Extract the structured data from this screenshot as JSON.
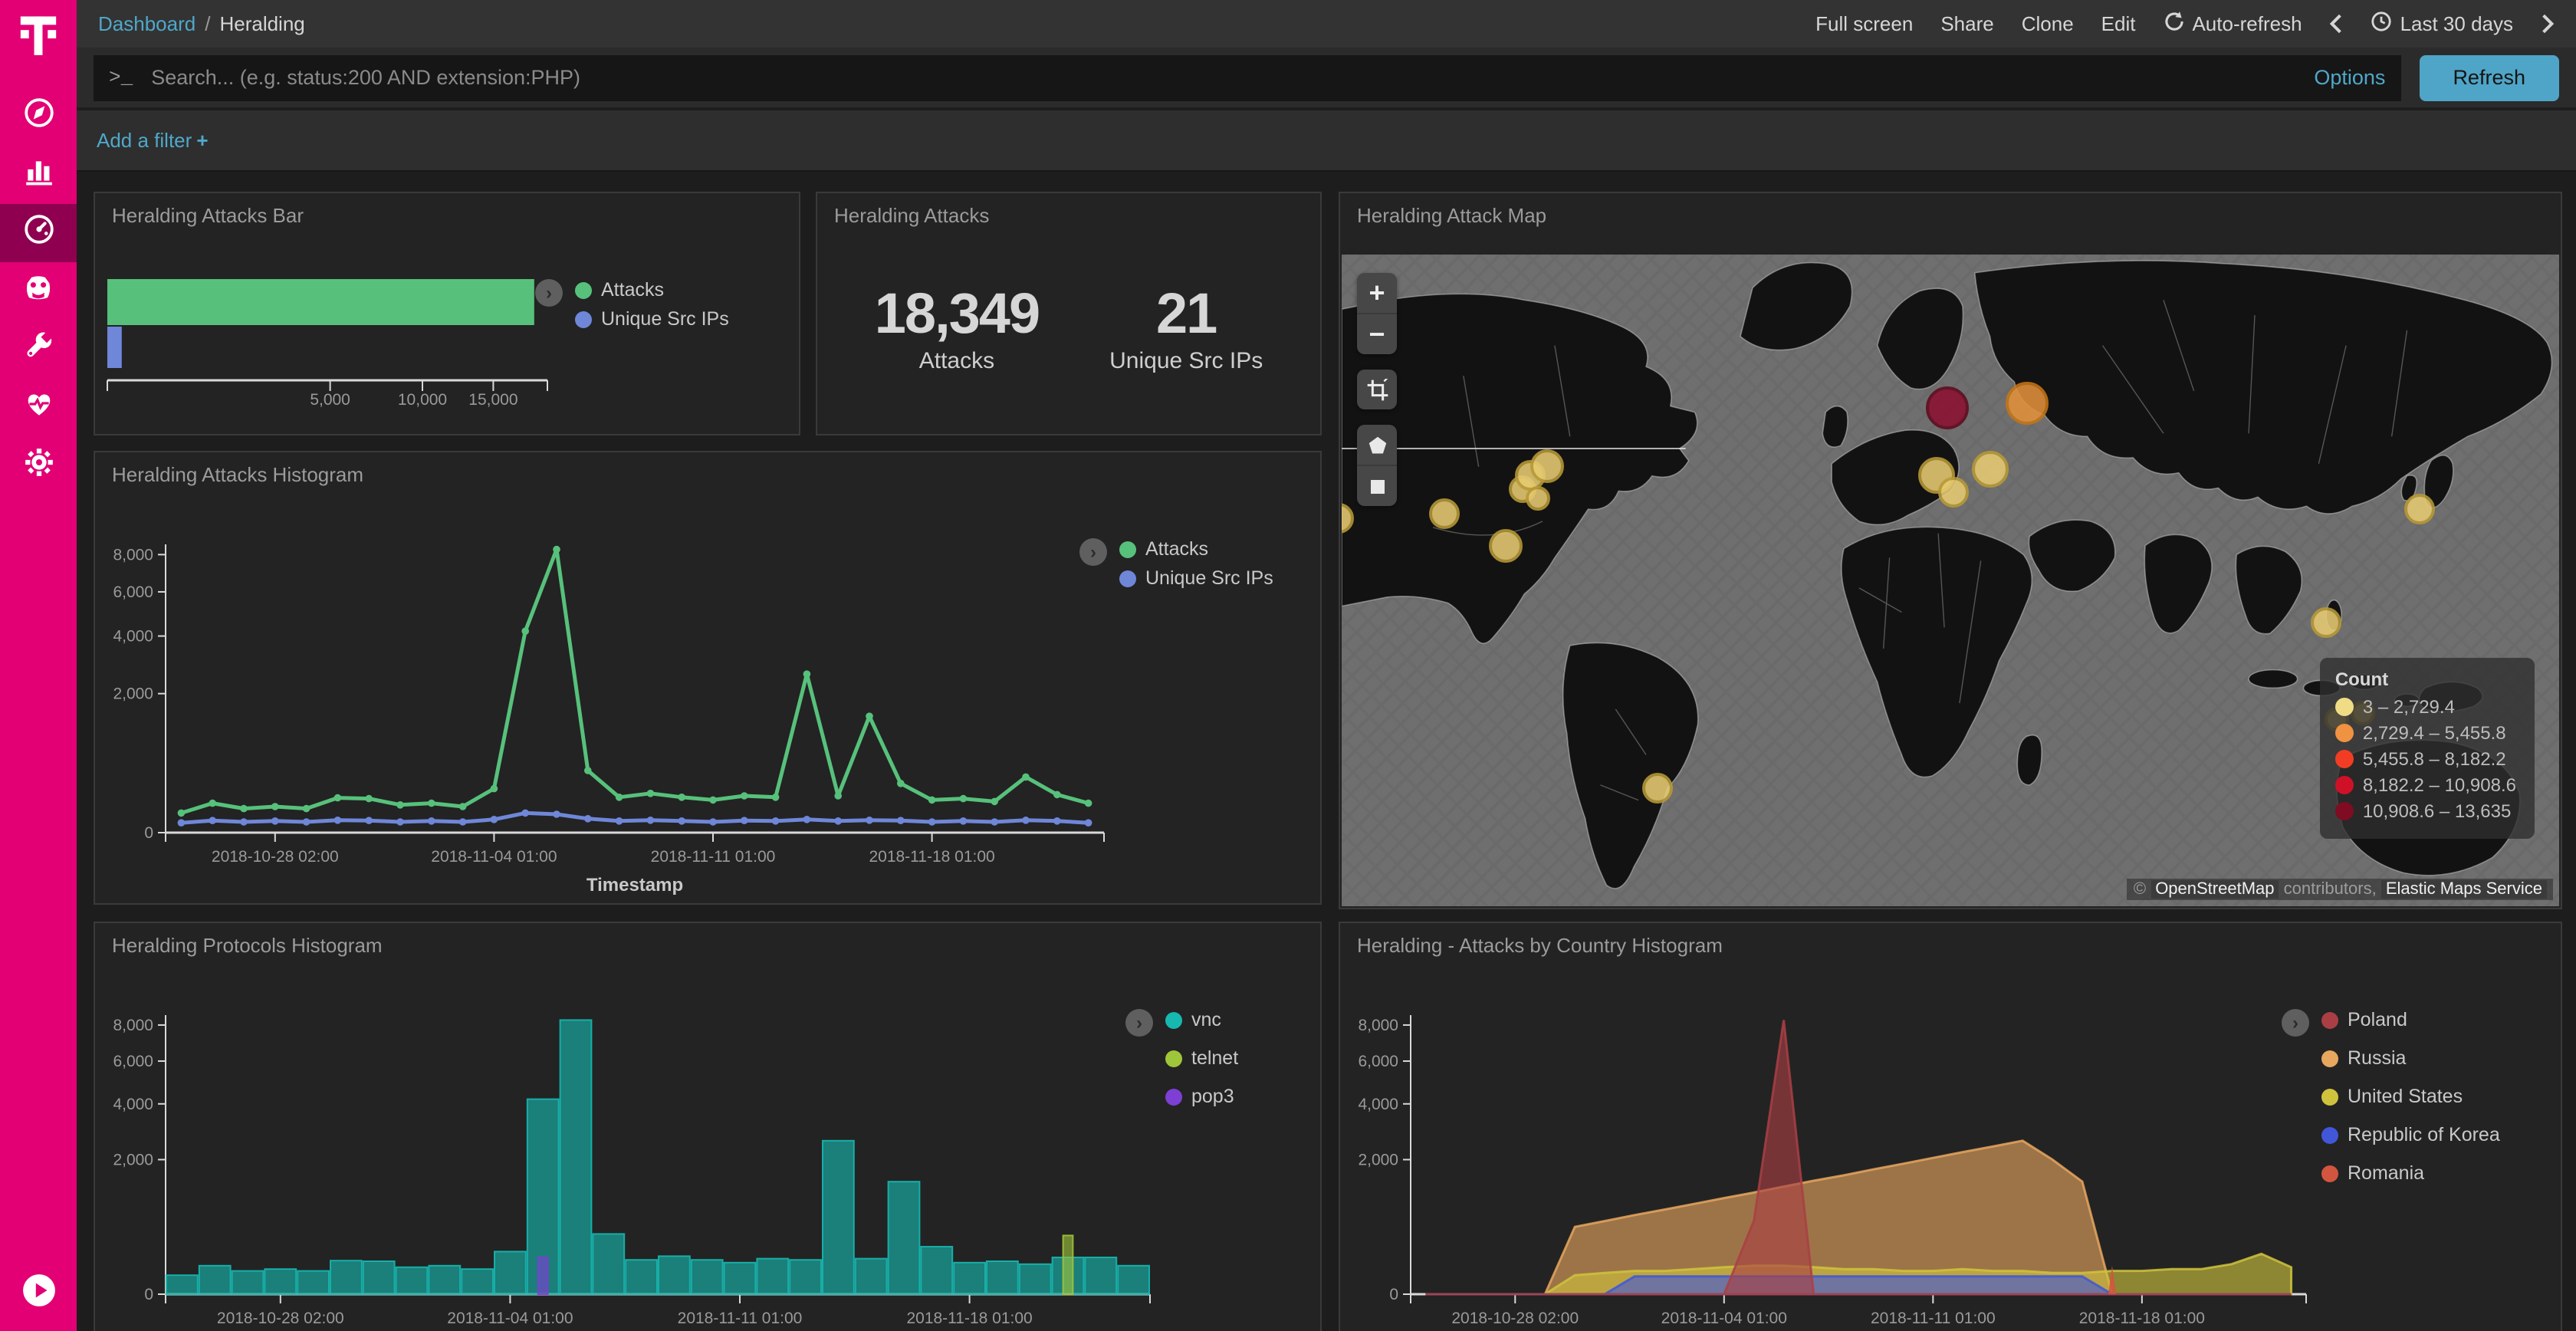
{
  "accent": {
    "magenta": "#e20074",
    "teal_link": "#4fa8c9",
    "refresh_btn": "#4fa5c7"
  },
  "topbar": {
    "breadcrumb": {
      "section": "Dashboard",
      "separator": "/",
      "page": "Heralding"
    },
    "actions": {
      "full_screen": "Full screen",
      "share": "Share",
      "clone": "Clone",
      "edit": "Edit",
      "auto_refresh": "Auto-refresh",
      "time_range": "Last 30 days"
    }
  },
  "search": {
    "prompt": ">_",
    "placeholder": "Search... (e.g. status:200 AND extension:PHP)",
    "options_label": "Options",
    "refresh_label": "Refresh"
  },
  "filter_bar": {
    "add_filter_label": "Add a filter",
    "plus": "+"
  },
  "panels": {
    "attacks_bar": {
      "title": "Heralding Attacks Bar"
    },
    "metric": {
      "title": "Heralding Attacks",
      "items": [
        {
          "value": "18,349",
          "label": "Attacks"
        },
        {
          "value": "21",
          "label": "Unique Src IPs"
        }
      ]
    },
    "map": {
      "title": "Heralding Attack Map",
      "count_legend": {
        "title": "Count",
        "items": [
          {
            "label": "3 – 2,729.4",
            "color": "#efdc85"
          },
          {
            "label": "2,729.4 – 5,455.8",
            "color": "#ef9241"
          },
          {
            "label": "5,455.8 – 8,182.2",
            "color": "#f23d24"
          },
          {
            "label": "8,182.2 – 10,908.6",
            "color": "#cf1127"
          },
          {
            "label": "10,908.6 – 13,635",
            "color": "#7f0c22"
          }
        ]
      },
      "attribution": {
        "copyright": "©",
        "osm": "OpenStreetMap",
        "contributors": "contributors,",
        "ems": "Elastic Maps Service"
      },
      "bubbles": [
        {
          "x": -0.3,
          "y": 40.5,
          "r": 10,
          "fill": "#e7cb72",
          "stroke": "#b89a36"
        },
        {
          "x": 8.4,
          "y": 39.8,
          "r": 10,
          "fill": "#e7cb72",
          "stroke": "#b89a36"
        },
        {
          "x": 13.5,
          "y": 44.8,
          "r": 11,
          "fill": "#e7cb72",
          "stroke": "#b89a36"
        },
        {
          "x": 14.8,
          "y": 36.0,
          "r": 9,
          "fill": "#e7cb72",
          "stroke": "#b89a36"
        },
        {
          "x": 15.5,
          "y": 33.8,
          "r": 10,
          "fill": "#e7cb72",
          "stroke": "#b89a36"
        },
        {
          "x": 16.9,
          "y": 32.5,
          "r": 11,
          "fill": "#e7cb72",
          "stroke": "#b89a36"
        },
        {
          "x": 16.1,
          "y": 37.5,
          "r": 8,
          "fill": "#e7cb72",
          "stroke": "#b89a36"
        },
        {
          "x": 49.8,
          "y": 23.5,
          "r": 14,
          "fill": "#8c1030",
          "stroke": "#5f0a20"
        },
        {
          "x": 56.3,
          "y": 22.8,
          "r": 14,
          "fill": "#e2903b",
          "stroke": "#c47615"
        },
        {
          "x": 48.9,
          "y": 33.8,
          "r": 12,
          "fill": "#e7cb72",
          "stroke": "#b89a36"
        },
        {
          "x": 53.3,
          "y": 33.0,
          "r": 12,
          "fill": "#e7cb72",
          "stroke": "#b89a36"
        },
        {
          "x": 50.2,
          "y": 36.5,
          "r": 10,
          "fill": "#e7cb72",
          "stroke": "#b89a36"
        },
        {
          "x": 88.5,
          "y": 39.0,
          "r": 10,
          "fill": "#e7cb72",
          "stroke": "#b89a36"
        },
        {
          "x": 80.8,
          "y": 56.5,
          "r": 10,
          "fill": "#e7cb72",
          "stroke": "#b89a36"
        },
        {
          "x": 81.8,
          "y": 71.3,
          "r": 8,
          "fill": "#e7cb72",
          "stroke": "#b89a36"
        },
        {
          "x": 83.9,
          "y": 70.3,
          "r": 8,
          "fill": "#e7cb72",
          "stroke": "#b89a36"
        },
        {
          "x": 25.9,
          "y": 81.8,
          "r": 10,
          "fill": "#e7cb72",
          "stroke": "#b89a36"
        }
      ]
    },
    "attacks_histogram": {
      "title": "Heralding Attacks Histogram"
    },
    "protocols_histogram": {
      "title": "Heralding Protocols Histogram"
    },
    "country_histogram": {
      "title": "Heralding - Attacks by Country Histogram"
    }
  },
  "chart_data": {
    "attacks_bar": {
      "type": "bar-horizontal",
      "scale": "sqrt",
      "vmax": 19500,
      "categories": [
        "Attacks",
        "Unique Src IPs"
      ],
      "values": [
        18349,
        21
      ],
      "colors": [
        "#57c17b",
        "#6f87d8"
      ],
      "x_ticks": [
        {
          "v": 5000,
          "label": "5,000"
        },
        {
          "v": 10000,
          "label": "10,000"
        },
        {
          "v": 15000,
          "label": "15,000"
        }
      ],
      "legend": [
        {
          "name": "Attacks",
          "color": "#57c17b"
        },
        {
          "name": "Unique Src IPs",
          "color": "#6f87d8"
        }
      ]
    },
    "attacks_histogram": {
      "type": "line",
      "scale": "sqrt",
      "vmax": 8600,
      "xlabel": "Timestamp",
      "x": [
        "2018-10-25",
        "2018-10-26",
        "2018-10-27",
        "2018-10-28",
        "2018-10-29",
        "2018-10-30",
        "2018-10-31",
        "2018-11-01",
        "2018-11-02",
        "2018-11-03",
        "2018-11-04",
        "2018-11-05",
        "2018-11-06",
        "2018-11-07",
        "2018-11-08",
        "2018-11-09",
        "2018-11-10",
        "2018-11-11",
        "2018-11-12",
        "2018-11-13",
        "2018-11-14",
        "2018-11-15",
        "2018-11-16",
        "2018-11-17",
        "2018-11-18",
        "2018-11-19",
        "2018-11-20",
        "2018-11-21",
        "2018-11-22",
        "2018-11-23"
      ],
      "y_ticks": [
        {
          "v": 0,
          "label": "0"
        },
        {
          "v": 2000,
          "label": "2,000"
        },
        {
          "v": 4000,
          "label": "4,000"
        },
        {
          "v": 6000,
          "label": "6,000"
        },
        {
          "v": 8000,
          "label": "8,000"
        }
      ],
      "x_ticks": [
        {
          "i": 3,
          "label": "2018-10-28 02:00"
        },
        {
          "i": 10,
          "label": "2018-11-04 01:00"
        },
        {
          "i": 17,
          "label": "2018-11-11 01:00"
        },
        {
          "i": 24,
          "label": "2018-11-18 01:00"
        }
      ],
      "series": [
        {
          "name": "Attacks",
          "color": "#57c17b",
          "values": [
            40,
            90,
            60,
            70,
            60,
            125,
            120,
            80,
            90,
            70,
            200,
            4200,
            8300,
            400,
            130,
            160,
            130,
            110,
            140,
            130,
            2600,
            140,
            1400,
            250,
            110,
            120,
            100,
            320,
            150,
            90
          ]
        },
        {
          "name": "Unique Src IPs",
          "color": "#6f87d8",
          "values": [
            10,
            15,
            12,
            14,
            12,
            16,
            15,
            12,
            14,
            12,
            18,
            40,
            35,
            20,
            14,
            16,
            14,
            12,
            15,
            14,
            18,
            14,
            16,
            15,
            12,
            14,
            12,
            16,
            14,
            10
          ]
        }
      ]
    },
    "protocols_histogram": {
      "type": "bar",
      "scale": "sqrt",
      "vmax": 8600,
      "xlabel": "Timestamp",
      "x": [
        "2018-10-25",
        "2018-10-26",
        "2018-10-27",
        "2018-10-28",
        "2018-10-29",
        "2018-10-30",
        "2018-10-31",
        "2018-11-01",
        "2018-11-02",
        "2018-11-03",
        "2018-11-04",
        "2018-11-05",
        "2018-11-06",
        "2018-11-07",
        "2018-11-08",
        "2018-11-09",
        "2018-11-10",
        "2018-11-11",
        "2018-11-12",
        "2018-11-13",
        "2018-11-14",
        "2018-11-15",
        "2018-11-16",
        "2018-11-17",
        "2018-11-18",
        "2018-11-19",
        "2018-11-20",
        "2018-11-21",
        "2018-11-22",
        "2018-11-23"
      ],
      "y_ticks": [
        {
          "v": 0,
          "label": "0"
        },
        {
          "v": 2000,
          "label": "2,000"
        },
        {
          "v": 4000,
          "label": "4,000"
        },
        {
          "v": 6000,
          "label": "6,000"
        },
        {
          "v": 8000,
          "label": "8,000"
        }
      ],
      "x_ticks": [
        {
          "i": 3,
          "label": "2018-10-28 02:00"
        },
        {
          "i": 10,
          "label": "2018-11-04 01:00"
        },
        {
          "i": 17,
          "label": "2018-11-11 01:00"
        },
        {
          "i": 24,
          "label": "2018-11-18 01:00"
        }
      ],
      "series": [
        {
          "name": "vnc",
          "color": "#17b8b0",
          "values": [
            40,
            90,
            60,
            70,
            60,
            125,
            120,
            80,
            90,
            70,
            200,
            4200,
            8300,
            400,
            130,
            160,
            130,
            110,
            140,
            130,
            2600,
            140,
            1400,
            250,
            110,
            120,
            100,
            150,
            150,
            90
          ]
        },
        {
          "name": "telnet",
          "color": "#9fc53a",
          "narrow": true,
          "values": [
            0,
            0,
            0,
            0,
            0,
            0,
            0,
            0,
            0,
            0,
            0,
            0,
            0,
            0,
            0,
            0,
            0,
            0,
            0,
            0,
            0,
            0,
            0,
            0,
            0,
            0,
            0,
            380,
            0,
            0
          ]
        },
        {
          "name": "pop3",
          "color": "#7d3fd4",
          "narrow": true,
          "values": [
            0,
            0,
            0,
            0,
            0,
            0,
            0,
            0,
            0,
            0,
            0,
            150,
            0,
            0,
            0,
            0,
            0,
            0,
            0,
            0,
            0,
            0,
            0,
            0,
            0,
            0,
            0,
            0,
            0,
            0
          ]
        }
      ]
    },
    "country_histogram": {
      "type": "area",
      "scale": "sqrt",
      "vmax": 8600,
      "xlabel": "Timestamp",
      "x": [
        "2018-10-25",
        "2018-10-26",
        "2018-10-27",
        "2018-10-28",
        "2018-10-29",
        "2018-10-30",
        "2018-10-31",
        "2018-11-01",
        "2018-11-02",
        "2018-11-03",
        "2018-11-04",
        "2018-11-05",
        "2018-11-06",
        "2018-11-07",
        "2018-11-08",
        "2018-11-09",
        "2018-11-10",
        "2018-11-11",
        "2018-11-12",
        "2018-11-13",
        "2018-11-14",
        "2018-11-15",
        "2018-11-16",
        "2018-11-17",
        "2018-11-18",
        "2018-11-19",
        "2018-11-20",
        "2018-11-21",
        "2018-11-22",
        "2018-11-23"
      ],
      "y_ticks": [
        {
          "v": 0,
          "label": "0"
        },
        {
          "v": 2000,
          "label": "2,000"
        },
        {
          "v": 4000,
          "label": "4,000"
        },
        {
          "v": 6000,
          "label": "6,000"
        },
        {
          "v": 8000,
          "label": "8,000"
        }
      ],
      "x_ticks": [
        {
          "i": 3,
          "label": "2018-10-28 02:00"
        },
        {
          "i": 10,
          "label": "2018-11-04 01:00"
        },
        {
          "i": 17,
          "label": "2018-11-11 01:00"
        },
        {
          "i": 24,
          "label": "2018-11-18 01:00"
        }
      ],
      "series": [
        {
          "name": "Russia",
          "color": "#e8a75f",
          "values": [
            0,
            0,
            0,
            0,
            0,
            500,
            590,
            690,
            790,
            900,
            1020,
            1140,
            1280,
            1420,
            1560,
            1720,
            1880,
            2050,
            2230,
            2410,
            2600,
            2000,
            1400,
            0,
            0,
            0,
            0,
            0,
            0,
            0
          ]
        },
        {
          "name": "United States",
          "color": "#cfc33d",
          "values": [
            0,
            0,
            0,
            0,
            0,
            40,
            50,
            60,
            60,
            70,
            80,
            90,
            90,
            80,
            70,
            70,
            60,
            60,
            70,
            60,
            60,
            50,
            50,
            60,
            60,
            70,
            70,
            100,
            180,
            80
          ]
        },
        {
          "name": "Republic of Korea",
          "color": "#4157d8",
          "values": [
            0,
            0,
            0,
            0,
            0,
            0,
            0,
            35,
            35,
            35,
            35,
            35,
            35,
            35,
            35,
            35,
            35,
            35,
            35,
            35,
            35,
            35,
            35,
            0,
            0,
            0,
            0,
            0,
            0,
            0
          ]
        },
        {
          "name": "Poland",
          "color": "#a93f44",
          "values": [
            0,
            0,
            0,
            0,
            0,
            0,
            0,
            0,
            0,
            0,
            0,
            600,
            8300,
            0,
            0,
            0,
            0,
            0,
            0,
            0,
            0,
            0,
            0,
            0,
            0,
            0,
            0,
            0,
            0,
            0
          ]
        },
        {
          "name": "Romania",
          "color": "#d2553f",
          "spike": true,
          "values": [
            0,
            0,
            0,
            0,
            0,
            0,
            0,
            0,
            0,
            0,
            0,
            0,
            0,
            0,
            0,
            0,
            0,
            0,
            0,
            0,
            0,
            0,
            0,
            90,
            0,
            0,
            0,
            0,
            0,
            0
          ]
        }
      ],
      "legend_order": [
        "Poland",
        "Russia",
        "United States",
        "Republic of Korea",
        "Romania"
      ]
    }
  },
  "country_legend": [
    {
      "name": "Poland",
      "color": "#a93f44"
    },
    {
      "name": "Russia",
      "color": "#e8a75f"
    },
    {
      "name": "United States",
      "color": "#cfc33d"
    },
    {
      "name": "Republic of Korea",
      "color": "#4157d8"
    },
    {
      "name": "Romania",
      "color": "#d2553f"
    }
  ],
  "protocols_legend": [
    {
      "name": "vnc",
      "color": "#17b8b0"
    },
    {
      "name": "telnet",
      "color": "#9fc53a"
    },
    {
      "name": "pop3",
      "color": "#7d3fd4"
    }
  ]
}
